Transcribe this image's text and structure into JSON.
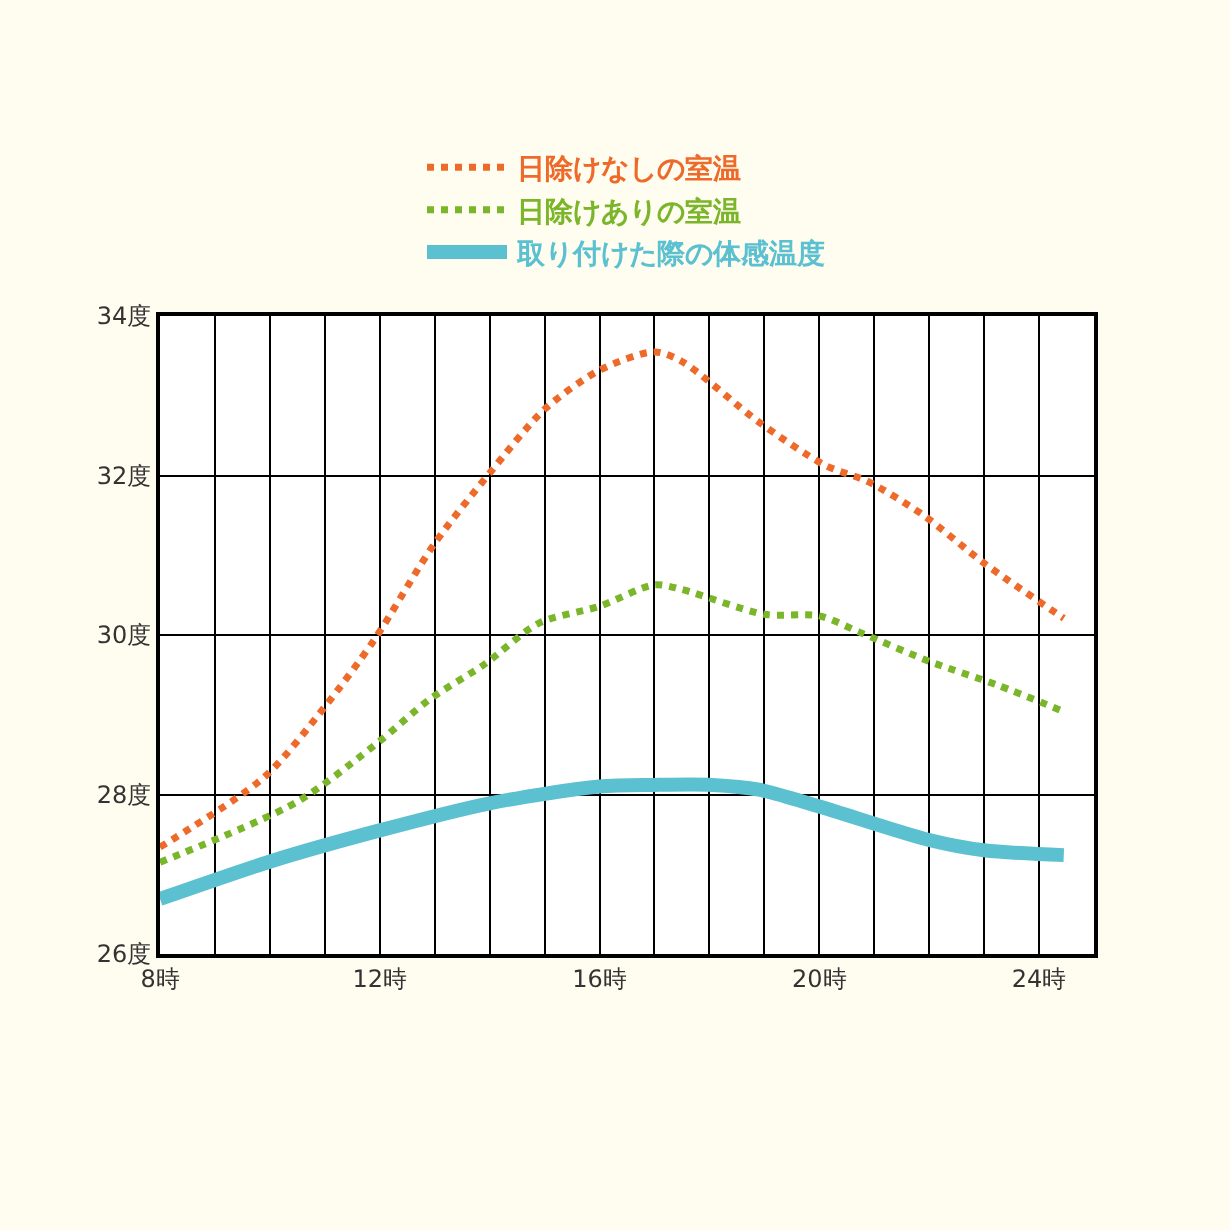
{
  "chart_data": {
    "type": "line",
    "series": [
      {
        "name": "日除けなしの室温",
        "color": "#ee6a2a",
        "line_style": "dotted",
        "x": [
          8,
          9.9,
          11,
          11.9,
          13,
          14,
          15,
          16,
          17,
          17.5,
          18.9,
          20.1,
          20.9,
          21.9,
          23,
          24.45
        ],
        "values": [
          27.34,
          28.22,
          29.1,
          29.94,
          31.15,
          32.03,
          32.83,
          33.32,
          33.55,
          33.43,
          32.67,
          32.13,
          31.92,
          31.5,
          30.9,
          30.21
        ]
      },
      {
        "name": "日除けありの室温",
        "color": "#7ab52a",
        "line_style": "dotted",
        "x": [
          8,
          10.5,
          12,
          12.9,
          13.9,
          14.9,
          16,
          17,
          17.5,
          19,
          20,
          20.75,
          22,
          23.25,
          24.45
        ],
        "values": [
          27.15,
          27.91,
          28.67,
          29.19,
          29.63,
          30.15,
          30.36,
          30.63,
          30.57,
          30.26,
          30.24,
          30.03,
          29.67,
          29.37,
          29.04
        ]
      },
      {
        "name": "取り付けた際の体感温度",
        "color": "#5bc0d0",
        "line_style": "solid",
        "x": [
          8,
          10.05,
          12,
          14,
          16,
          17,
          18.05,
          18.9,
          20,
          22,
          23,
          24.45
        ],
        "values": [
          26.69,
          27.17,
          27.55,
          27.89,
          28.1,
          28.12,
          28.12,
          28.06,
          27.85,
          27.43,
          27.3,
          27.24
        ]
      }
    ],
    "xlim": [
      8,
      25
    ],
    "xticks": [
      {
        "value": 8,
        "label": "8時"
      },
      {
        "value": 9,
        "label": null
      },
      {
        "value": 10,
        "label": null
      },
      {
        "value": 11,
        "label": null
      },
      {
        "value": 12,
        "label": "12時"
      },
      {
        "value": 13,
        "label": null
      },
      {
        "value": 14,
        "label": null
      },
      {
        "value": 15,
        "label": null
      },
      {
        "value": 16,
        "label": "16時"
      },
      {
        "value": 17,
        "label": null
      },
      {
        "value": 18,
        "label": null
      },
      {
        "value": 19,
        "label": null
      },
      {
        "value": 20,
        "label": "20時"
      },
      {
        "value": 21,
        "label": null
      },
      {
        "value": 22,
        "label": null
      },
      {
        "value": 23,
        "label": null
      },
      {
        "value": 24,
        "label": "24時"
      }
    ],
    "ylim": [
      26,
      34
    ],
    "yticks": [
      {
        "value": 26,
        "label": "26度"
      },
      {
        "value": 28,
        "label": "28度"
      },
      {
        "value": 30,
        "label": "30度"
      },
      {
        "value": 32,
        "label": "32度"
      },
      {
        "value": 34,
        "label": "34度"
      }
    ],
    "grid": true,
    "legend": "top",
    "marker": "none"
  }
}
